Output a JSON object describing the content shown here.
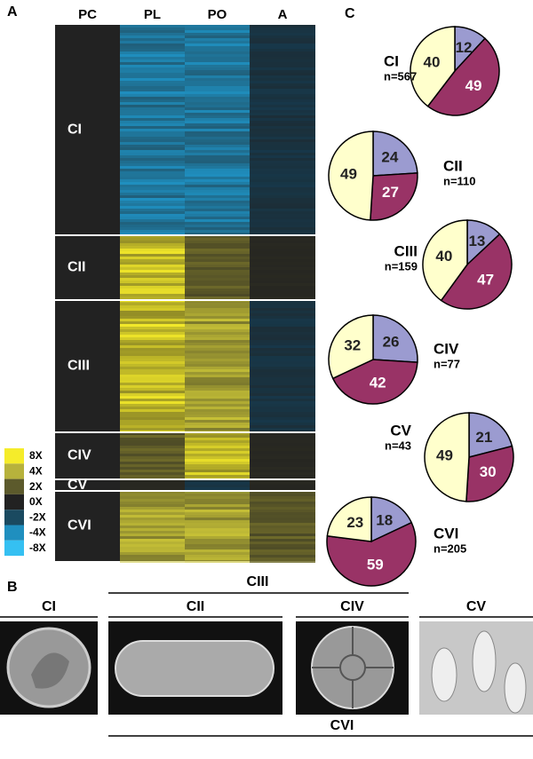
{
  "panel_a": {
    "label": "A",
    "columns": [
      "PC",
      "PL",
      "PO",
      "A"
    ],
    "clusters": [
      "CI",
      "CII",
      "CIII",
      "CIV",
      "CV",
      "CVI"
    ],
    "legend": [
      "8X",
      "4X",
      "2X",
      "0X",
      "-2X",
      "-4X",
      "-8X"
    ]
  },
  "panel_b": {
    "label": "B",
    "images": [
      "CI",
      "CII",
      "CIV",
      "CV"
    ],
    "groups": [
      "CIII",
      "CVI"
    ]
  },
  "panel_c": {
    "label": "C",
    "type": "pie",
    "colors": [
      "#9b9bd0",
      "#993366",
      "#ffffcc"
    ],
    "pies": [
      {
        "name": "CI",
        "n": "n=567",
        "values": [
          12,
          49,
          40
        ]
      },
      {
        "name": "CII",
        "n": "n=110",
        "values": [
          24,
          27,
          49
        ]
      },
      {
        "name": "CIII",
        "n": "n=159",
        "values": [
          13,
          47,
          40
        ]
      },
      {
        "name": "CIV",
        "n": "n=77",
        "values": [
          26,
          42,
          32
        ]
      },
      {
        "name": "CV",
        "n": "n=43",
        "values": [
          21,
          30,
          49
        ]
      },
      {
        "name": "CVI",
        "n": "n=205",
        "values": [
          18,
          59,
          23
        ]
      }
    ]
  }
}
